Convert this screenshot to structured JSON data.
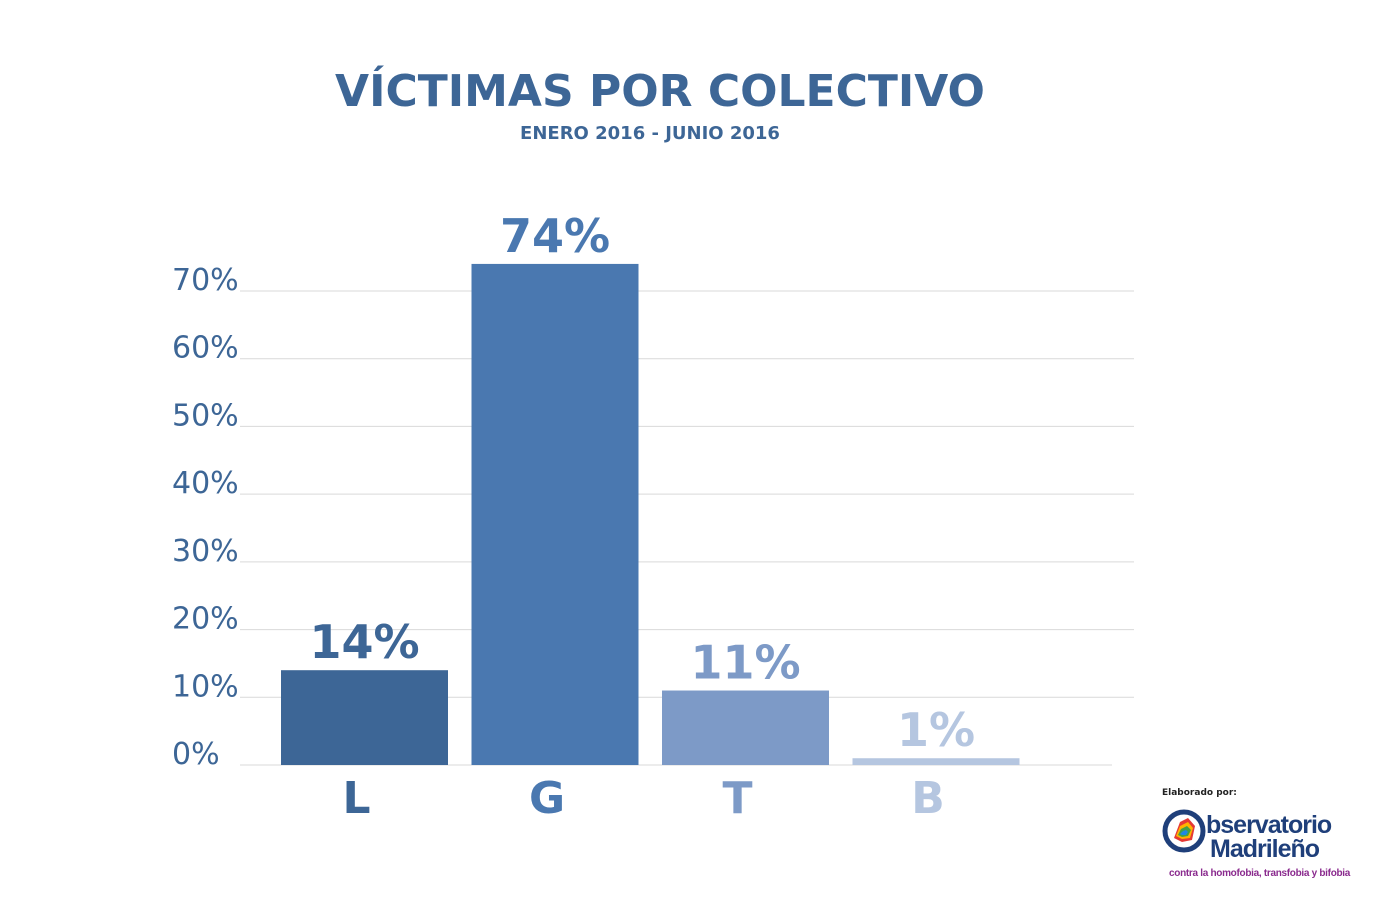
{
  "chart_data": {
    "type": "bar",
    "title": "VÍCTIMAS POR COLECTIVO",
    "subtitle": "ENERO 2016 - JUNIO 2016",
    "categories": [
      "L",
      "G",
      "T",
      "B"
    ],
    "values": [
      14,
      74,
      11,
      1
    ],
    "data_labels": [
      "14%",
      "74%",
      "11%",
      "1%"
    ],
    "bar_colors": [
      "#3d6696",
      "#4a78b0",
      "#7d9ac7",
      "#b5c6e0"
    ],
    "label_colors": [
      "#3d6696",
      "#4a78b0",
      "#7d9ac7",
      "#b5c6e0"
    ],
    "ylim": [
      0,
      70
    ],
    "yticks": [
      0,
      10,
      20,
      30,
      40,
      50,
      60,
      70
    ],
    "ytick_labels": [
      "0%",
      "10%",
      "20%",
      "30%",
      "40%",
      "50%",
      "60%",
      "70%"
    ],
    "grid": true,
    "legend": "none"
  },
  "colors": {
    "title": "#3d6696",
    "tick": "#3d6696",
    "grid": "#d9d9d9"
  },
  "credit": {
    "label": "Elaborado por:",
    "logo_line1": "bservatorio",
    "logo_line2": "Madrileño",
    "tagline": "contra la homofobia, transfobia y bifobia",
    "logo_icon": "observatorio-logo-icon"
  }
}
